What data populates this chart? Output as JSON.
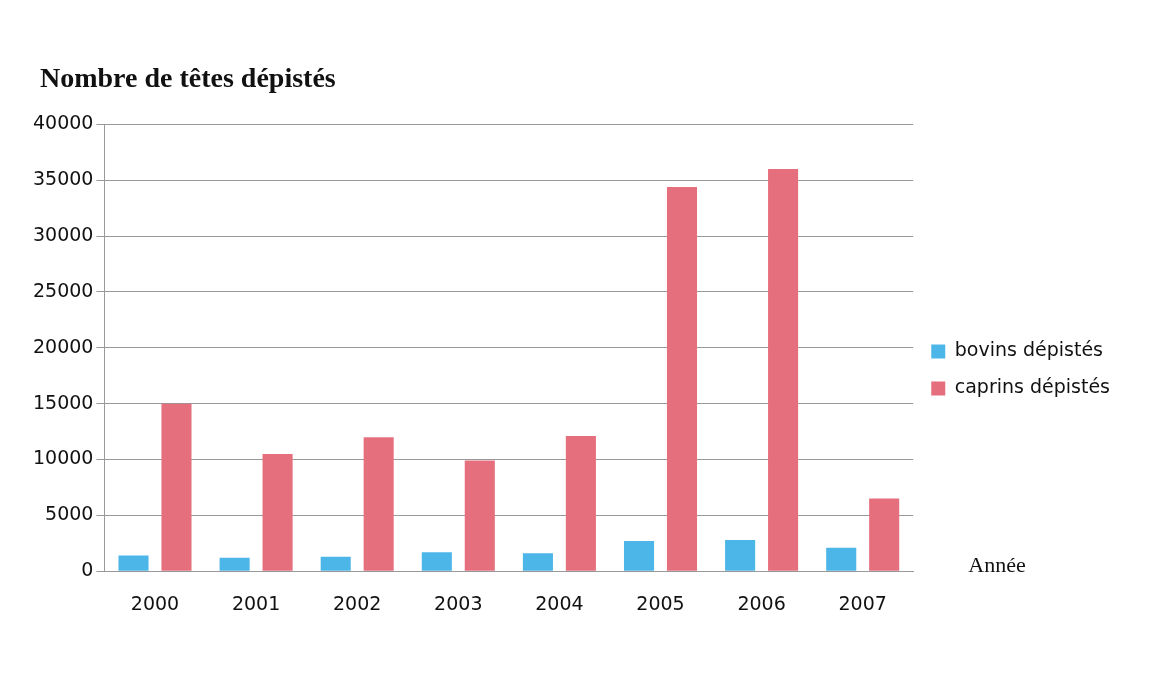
{
  "chart_data": {
    "type": "bar",
    "title": "Nombre de têtes dépistés",
    "xlabel": "Année",
    "categories": [
      "2000",
      "2001",
      "2002",
      "2003",
      "2004",
      "2005",
      "2006",
      "2007"
    ],
    "series": [
      {
        "name": "bovins dépistés",
        "color": "#4db6e8",
        "values": [
          1400,
          1200,
          1300,
          1700,
          1600,
          2700,
          2800,
          2100
        ]
      },
      {
        "name": "caprins dépistés",
        "color": "#e66f7e",
        "values": [
          15000,
          10500,
          12000,
          9900,
          12100,
          34400,
          36000,
          6500
        ]
      }
    ],
    "ylim": [
      0,
      40000
    ],
    "yticks": [
      0,
      5000,
      10000,
      15000,
      20000,
      25000,
      30000,
      35000,
      40000
    ],
    "grid": "y",
    "legend": "right"
  }
}
